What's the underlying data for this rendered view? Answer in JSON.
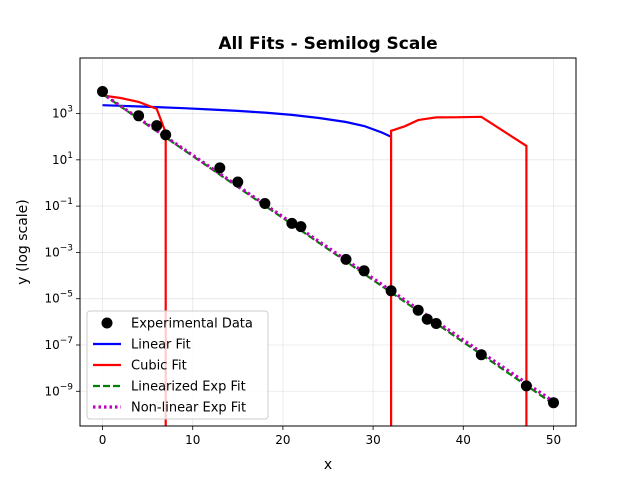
{
  "chart_data": {
    "type": "line",
    "title": "All Fits - Semilog Scale",
    "xlabel": "x",
    "ylabel": "y (log scale)",
    "xlim": [
      -2.5,
      52.5
    ],
    "ylim_log10": [
      -10.5,
      5.4
    ],
    "yscale": "log",
    "grid": true,
    "legend_position": "lower-left",
    "x_ticks": [
      0,
      10,
      20,
      30,
      40,
      50
    ],
    "x_tick_labels": [
      "0",
      "10",
      "20",
      "30",
      "40",
      "50"
    ],
    "y_ticks_log10": [
      3,
      1,
      -1,
      -3,
      -5,
      -7,
      -9
    ],
    "y_tick_labels": [
      {
        "base": "10",
        "exp": "3"
      },
      {
        "base": "10",
        "exp": "1"
      },
      {
        "base": "10",
        "exp": "−1"
      },
      {
        "base": "10",
        "exp": "−3"
      },
      {
        "base": "10",
        "exp": "−5"
      },
      {
        "base": "10",
        "exp": "−7"
      },
      {
        "base": "10",
        "exp": "−9"
      }
    ],
    "series": [
      {
        "name": "Experimental Data",
        "kind": "scatter",
        "color": "#000000",
        "x": [
          0,
          4,
          6,
          7,
          13,
          15,
          18,
          21,
          22,
          27,
          29,
          32,
          35,
          36,
          37,
          42,
          47,
          50
        ],
        "y": [
          9000,
          800,
          300,
          120,
          4.5,
          1.1,
          0.13,
          0.018,
          0.013,
          0.0005,
          0.00016,
          2.2e-05,
          3.2e-06,
          1.3e-06,
          8.5e-07,
          3.8e-08,
          1.7e-09,
          3.2e-10
        ]
      },
      {
        "name": "Linear Fit",
        "kind": "line",
        "color": "#0000ff",
        "style": "solid",
        "x": [
          0,
          3,
          6,
          9,
          12,
          15,
          18,
          21,
          24,
          27,
          29,
          31,
          32
        ],
        "y": [
          2300,
          2100,
          1900,
          1700,
          1500,
          1300,
          1100,
          870,
          640,
          430,
          290,
          150,
          100
        ]
      },
      {
        "name": "Cubic Fit",
        "kind": "line",
        "color": "#ff0000",
        "style": "solid",
        "segments": [
          {
            "x": [
              0,
              2,
              4,
              6,
              7,
              7
            ],
            "y": [
              6000,
              4700,
              3200,
              1600,
              150,
              1e-12
            ]
          },
          {
            "x": [
              32,
              32,
              33.5,
              35,
              36,
              37,
              39,
              42,
              47,
              47
            ],
            "y": [
              1e-12,
              180,
              280,
              520,
              600,
              680,
              690,
              720,
              40,
              1e-12
            ]
          }
        ]
      },
      {
        "name": "Linearized Exp Fit",
        "kind": "line",
        "color": "#008000",
        "style": "dashed",
        "x": [
          0,
          50
        ],
        "y": [
          7000,
          2.8e-10
        ]
      },
      {
        "name": "Non-linear Exp Fit",
        "kind": "line",
        "color": "#bf00bf",
        "style": "dotted",
        "x": [
          0,
          50
        ],
        "y": [
          7300,
          3.6e-10
        ]
      }
    ]
  }
}
